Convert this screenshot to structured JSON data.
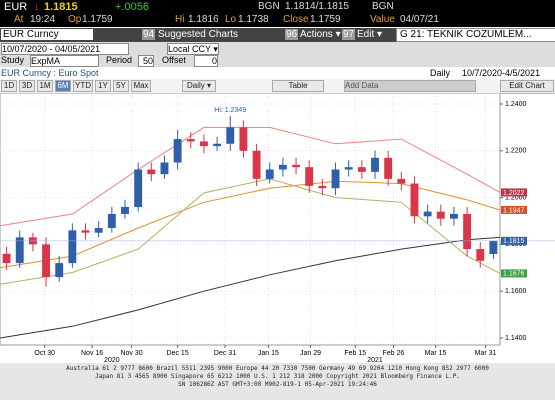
{
  "header": {
    "ticker": "EUR",
    "direction": "↓",
    "last": "1.1815",
    "change": "+.0056",
    "bid_source": "BGN",
    "bid_ask": "1.1814/1.1815",
    "ask_source": "BGN",
    "time_label": "At",
    "time": "19:24",
    "open_label": "Op",
    "open": "1.1759",
    "high_label": "Hi",
    "high": "1.1816",
    "low_label": "Lo",
    "low": "1.1738",
    "close_label": "Close",
    "close": "1.1759",
    "value_label": "Value",
    "value_date": "04/07/21"
  },
  "toolbar": {
    "security": "EUR Curncy",
    "suggested_no": "94",
    "suggested": "Suggested Charts",
    "actions_no": "96",
    "actions": "Actions ▾",
    "edit_no": "97",
    "edit": "Edit ▾",
    "template": "G 21: TEKNIK COZUMLEM..."
  },
  "settings": {
    "range": "10/07/2020 - 04/05/2021",
    "currency": "Local CCY ▾",
    "study_label": "Study",
    "study": "ExpMA",
    "period_label": "Period",
    "period": "50",
    "offset_label": "Offset",
    "offset": "0"
  },
  "caption": {
    "title": "EUR Curncy : Euro Spot",
    "frequency": "Daily",
    "span": "10/7/2020-4/5/2021"
  },
  "buttons": {
    "periods": [
      "1D",
      "3D",
      "1M",
      "6M",
      "YTD",
      "1Y",
      "5Y",
      "Max"
    ],
    "interval": "Daily ▾",
    "table": "Table",
    "add_data": "Add Data",
    "edit_chart": "Edit Chart"
  },
  "chart": {
    "ylim": [
      1.137,
      1.2447
    ],
    "xlim": [
      -0.5,
      37.5
    ],
    "yticks": [
      {
        "value": 1.24,
        "label": "1.2400"
      },
      {
        "value": 1.22,
        "label": "1.2200"
      },
      {
        "value": 1.2,
        "label": "1.2000"
      },
      {
        "value": 1.18,
        "label": "1.1800"
      },
      {
        "value": 1.16,
        "label": "1.1600"
      },
      {
        "value": 1.14,
        "label": "1.1400"
      }
    ],
    "xticks": [
      {
        "value": 2.9,
        "label": "Oct 30"
      },
      {
        "value": 6.5,
        "label": "Nov 16"
      },
      {
        "value": 9.5,
        "label": "Nov 30"
      },
      {
        "value": 13.0,
        "label": "Dec 15"
      },
      {
        "value": 16.6,
        "label": "Dec 31"
      },
      {
        "value": 19.9,
        "label": "Jan 15"
      },
      {
        "value": 23.1,
        "label": "Jan 29"
      },
      {
        "value": 26.5,
        "label": "Feb 15"
      },
      {
        "value": 29.4,
        "label": "Feb 26"
      },
      {
        "value": 32.6,
        "label": "Mar 15"
      },
      {
        "value": 36.4,
        "label": "Mar 31"
      }
    ],
    "years": [
      {
        "value": 8.0,
        "label": "2020"
      },
      {
        "value": 28.0,
        "label": "2021"
      }
    ],
    "up_color": "#2f5fa8",
    "down_color": "#d9364a",
    "open": [
      1.176,
      1.172,
      1.183,
      1.18,
      1.166,
      1.172,
      1.186,
      1.185,
      1.187,
      1.193,
      1.196,
      1.212,
      1.21,
      1.215,
      1.225,
      1.224,
      1.222,
      1.223,
      1.23,
      1.22,
      1.208,
      1.212,
      1.214,
      1.213,
      1.205,
      1.204,
      1.212,
      1.213,
      1.211,
      1.217,
      1.208,
      1.206,
      1.192,
      1.194,
      1.191,
      1.193,
      1.178,
      1.1759
    ],
    "high": [
      1.179,
      1.186,
      1.185,
      1.183,
      1.175,
      1.189,
      1.189,
      1.19,
      1.196,
      1.199,
      1.215,
      1.215,
      1.218,
      1.229,
      1.228,
      1.227,
      1.226,
      1.2349,
      1.233,
      1.223,
      1.215,
      1.217,
      1.217,
      1.216,
      1.208,
      1.215,
      1.216,
      1.216,
      1.22,
      1.22,
      1.211,
      1.209,
      1.197,
      1.197,
      1.196,
      1.196,
      1.181,
      1.1816
    ],
    "low": [
      1.169,
      1.17,
      1.177,
      1.162,
      1.164,
      1.17,
      1.182,
      1.183,
      1.185,
      1.191,
      1.194,
      1.207,
      1.208,
      1.212,
      1.221,
      1.219,
      1.22,
      1.22,
      1.217,
      1.205,
      1.206,
      1.209,
      1.21,
      1.202,
      1.201,
      1.201,
      1.209,
      1.208,
      1.208,
      1.205,
      1.203,
      1.189,
      1.189,
      1.188,
      1.188,
      1.175,
      1.17,
      1.1738
    ],
    "close": [
      1.172,
      1.183,
      1.18,
      1.166,
      1.172,
      1.186,
      1.185,
      1.187,
      1.193,
      1.196,
      1.212,
      1.21,
      1.215,
      1.225,
      1.224,
      1.222,
      1.223,
      1.23,
      1.22,
      1.208,
      1.212,
      1.214,
      1.213,
      1.205,
      1.204,
      1.212,
      1.213,
      1.211,
      1.217,
      1.208,
      1.206,
      1.192,
      1.194,
      1.191,
      1.193,
      1.178,
      1.173,
      1.1815
    ],
    "high_note": {
      "text": "Hi: 1.2349",
      "value": 1.2349
    },
    "lines": [
      {
        "color": "#333333",
        "x": [
          -0.5,
          5,
          10,
          15,
          20,
          25,
          30,
          35,
          37.5
        ],
        "values": [
          1.14,
          1.145,
          1.152,
          1.16,
          1.167,
          1.173,
          1.178,
          1.182,
          1.183
        ]
      },
      {
        "color": "#e0902a",
        "x": [
          -0.5,
          5,
          10,
          15,
          20,
          25,
          30,
          35,
          37.5
        ],
        "values": [
          1.17,
          1.175,
          1.187,
          1.198,
          1.204,
          1.207,
          1.206,
          1.199,
          1.1947
        ]
      },
      {
        "color": "#f08080",
        "x": [
          -0.5,
          5,
          10,
          15,
          20,
          25,
          30,
          35,
          37.5
        ],
        "values": [
          1.188,
          1.193,
          1.212,
          1.23,
          1.23,
          1.223,
          1.225,
          1.21,
          1.2022
        ]
      },
      {
        "color": "#b5b060",
        "x": [
          -0.5,
          5,
          10,
          15,
          20,
          25,
          30,
          35,
          37.5
        ],
        "values": [
          1.163,
          1.168,
          1.178,
          1.202,
          1.208,
          1.2,
          1.198,
          1.175,
          1.1676
        ]
      }
    ],
    "price_tags": [
      {
        "value": 1.2022,
        "label": "1.2022",
        "color": "#c0304a"
      },
      {
        "value": 1.1947,
        "label": "1.1947",
        "color": "#d85020"
      },
      {
        "value": 1.1815,
        "label": "1.1815",
        "color": "#2f5fa8"
      },
      {
        "value": 1.1676,
        "label": "1.1676",
        "color": "#3aa040"
      }
    ]
  },
  "footer": [
    "Australia 61 2 9777 8600 Brazil 5511 2395 9000 Europe 44 20 7330 7500 Germany 49 69 9204 1210 Hong Kong 852 2977 6000",
    "Japan 81 3 4565 8900      Singapore 65 6212 1000      U.S. 1 212 318 2000      Copyright 2021 Bloomberg Finance L.P.",
    "SN 106286Z AST  GMT+3:00 M902-819-1 05-Apr-2021 19:24:46"
  ]
}
